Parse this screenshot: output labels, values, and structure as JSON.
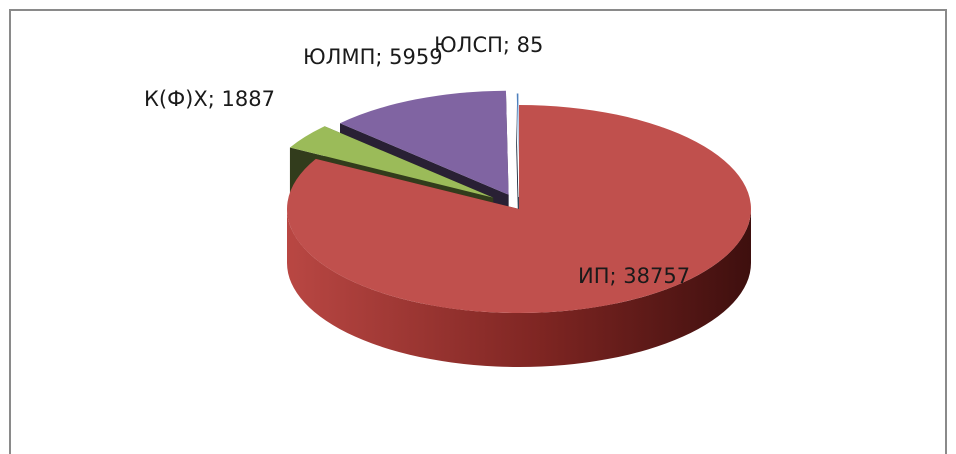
{
  "chart_data": {
    "type": "pie",
    "style": "3d-exploded",
    "legend": "none",
    "categories": [
      "ИП",
      "К(Ф)Х",
      "ЮЛМП",
      "ЮЛСП"
    ],
    "values": [
      38757,
      1887,
      5959,
      85
    ],
    "data_labels": [
      "ИП; 38757",
      "К(Ф)Х; 1887",
      "ЮЛМП; 5959",
      "ЮЛСП; 85"
    ],
    "colors": [
      "#c0504d",
      "#9bbb59",
      "#8064a2",
      "#4f81bd"
    ]
  }
}
